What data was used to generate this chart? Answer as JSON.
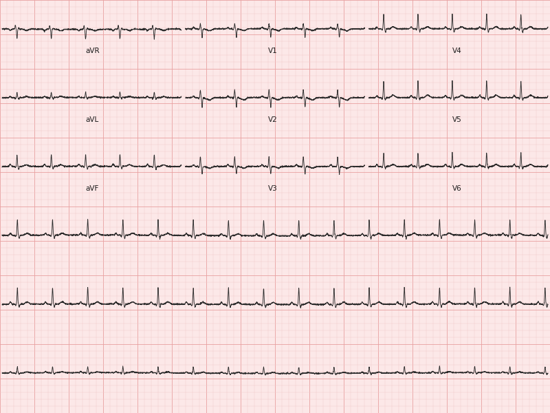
{
  "bg_color": "#fce8e8",
  "grid_minor_color": "#f2c8c8",
  "grid_major_color": "#e8a0a0",
  "line_color": "#2a2a2a",
  "line_width": 0.65,
  "fig_width": 8.0,
  "fig_height": 6.0,
  "dpi": 100,
  "label_fontsize": 7.5,
  "row_labels": [
    [
      [
        "aVR",
        0.155
      ],
      [
        "V1",
        0.488
      ],
      [
        "V4",
        0.822
      ]
    ],
    [
      [
        "aVL",
        0.155
      ],
      [
        "V2",
        0.488
      ],
      [
        "V5",
        0.822
      ]
    ],
    [
      [
        "aVF",
        0.155
      ],
      [
        "V3",
        0.488
      ],
      [
        "V6",
        0.822
      ]
    ],
    [],
    [],
    []
  ]
}
